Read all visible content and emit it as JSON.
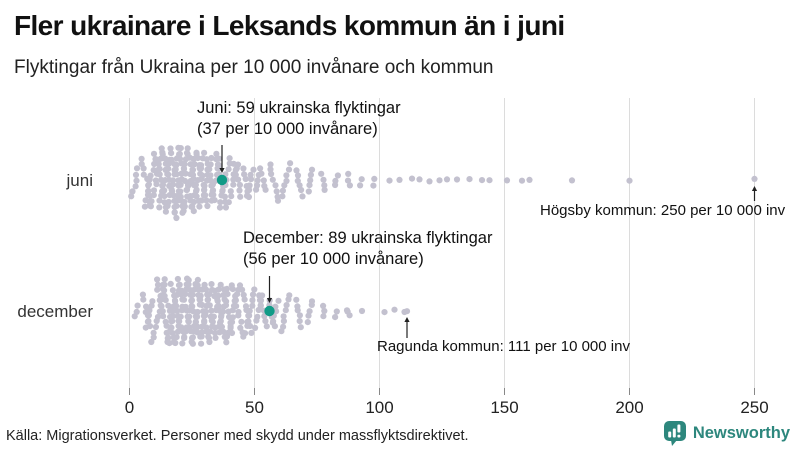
{
  "header": {
    "title": "Fler ukrainare i Leksands kommun än i juni",
    "subtitle": "Flyktingar från Ukraina per 10 000 invånare och kommun"
  },
  "chart_data": {
    "type": "beeswarm",
    "unit": "flyktingar per 10 000 invånare och kommun",
    "x_axis": {
      "min": 0,
      "max": 250,
      "ticks": [
        0,
        50,
        100,
        150,
        200,
        250
      ],
      "gridlines": true
    },
    "rows": [
      {
        "label": "juni",
        "highlight": {
          "value": 37,
          "label_line1": "Juni: 59 ukrainska flyktingar",
          "label_line2": "(37 per 10 000 invånare)"
        },
        "outlier_annotation": {
          "value": 250,
          "text": "Högsby kommun: 250 per 10 000 inv"
        },
        "bins": {
          "start": 0,
          "width": 5,
          "counts": [
            6,
            20,
            32,
            40,
            38,
            33,
            27,
            21,
            15,
            12,
            9,
            8,
            7,
            6,
            5,
            4,
            3,
            3,
            2,
            2
          ]
        },
        "scatter_values": [
          104,
          108,
          113,
          116,
          120,
          124,
          127,
          131,
          136,
          141,
          144,
          151,
          157,
          160,
          177,
          200,
          250
        ]
      },
      {
        "label": "december",
        "highlight": {
          "value": 56,
          "label_line1": "December: 89 ukrainska flyktingar",
          "label_line2": "(56 per 10 000 invånare)"
        },
        "outlier_annotation": {
          "value": 111,
          "text": "Ragunda kommun: 111 per 10 000 inv"
        },
        "bins": {
          "start": 0,
          "width": 5,
          "counts": [
            3,
            13,
            26,
            35,
            39,
            37,
            33,
            28,
            23,
            18,
            14,
            11,
            8,
            6,
            5,
            3,
            2,
            2
          ]
        },
        "scatter_values": [
          87,
          93,
          102,
          106,
          110,
          111
        ]
      }
    ]
  },
  "colors": {
    "dot": "#c3c1cf",
    "highlight": "#119b87",
    "gridline": "#dcdcdc",
    "axis_text": "#222222",
    "annotation_text": "#111111",
    "brand_teal": "#2d877d"
  },
  "footer": {
    "source": "Källa: Migrationsverket. Personer med skydd under massflyktsdirektivet.",
    "brand": "Newsworthy"
  }
}
